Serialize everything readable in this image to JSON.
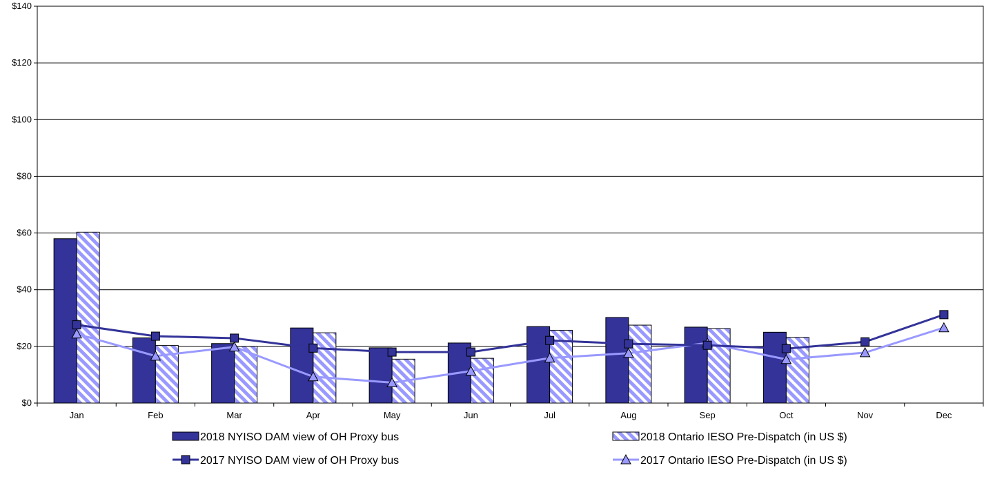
{
  "chart_data": {
    "type": "bar",
    "title": "",
    "xlabel": "",
    "ylabel": "",
    "categories": [
      "Jan",
      "Feb",
      "Mar",
      "Apr",
      "May",
      "Jun",
      "Jul",
      "Aug",
      "Sep",
      "Oct",
      "Nov",
      "Dec"
    ],
    "ylim": [
      0,
      140
    ],
    "yticks": [
      0,
      20,
      40,
      60,
      80,
      100,
      120,
      140
    ],
    "ytick_labels": [
      "$0",
      "$20",
      "$40",
      "$60",
      "$80",
      "$100",
      "$120",
      "$140"
    ],
    "grid": true,
    "legend_position": "bottom",
    "series": [
      {
        "name": "2018 NYISO DAM view of OH Proxy bus",
        "kind": "bar",
        "style": "solid",
        "color": "#333399",
        "values": [
          58,
          23,
          21,
          26.5,
          19.5,
          21.2,
          27,
          30.2,
          26.8,
          25,
          null,
          null
        ]
      },
      {
        "name": "2018 Ontario IESO Pre-Dispatch (in US $)",
        "kind": "bar",
        "style": "hatched",
        "color": "#9999ff",
        "values": [
          60.3,
          20.3,
          20,
          24.8,
          15.5,
          15.8,
          25.7,
          27.5,
          26.3,
          23.2,
          null,
          null
        ]
      },
      {
        "name": "2017 NYISO DAM view of OH Proxy bus",
        "kind": "line",
        "marker": "square",
        "color": "#333399",
        "values": [
          27.6,
          23.6,
          22.9,
          19.4,
          18,
          18,
          22.1,
          20.9,
          20.4,
          19.2,
          21.6,
          31.2
        ]
      },
      {
        "name": "2017 Ontario IESO Pre-Dispatch (in US $)",
        "kind": "line",
        "marker": "triangle",
        "color": "#9999ff",
        "values": [
          24.4,
          16.6,
          19.8,
          9.3,
          7.2,
          11.3,
          15.9,
          17.6,
          21.2,
          15.4,
          17.8,
          26.6
        ]
      }
    ]
  }
}
